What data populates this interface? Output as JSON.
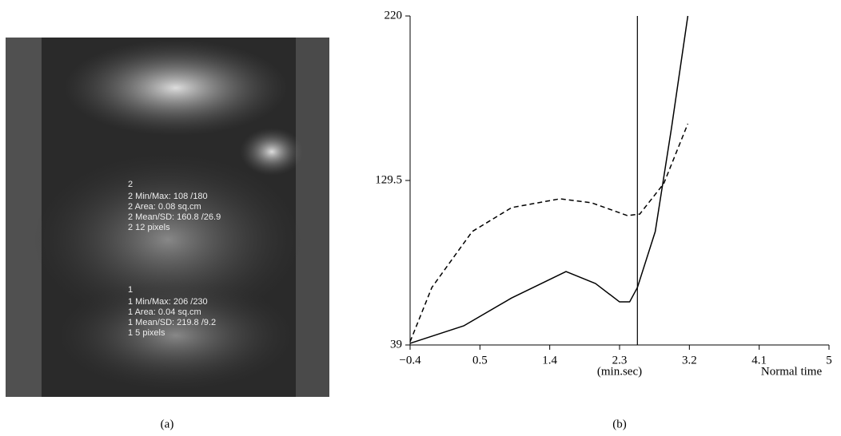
{
  "figure_labels": [
    "(a)",
    "(b)"
  ],
  "image_panel": {
    "overlays": [
      "2",
      "2 Min/Max: 108 /180",
      "2 Area: 0.08 sq.cm",
      "2 Mean/SD: 160.8 /26.9",
      "2  12 pixels",
      "1",
      "1 Min/Max: 206 /230",
      "1 Area: 0.04 sq.cm",
      "1 Mean/SD: 219.8 /9.2",
      "1  5 pixels"
    ]
  },
  "chart_data": {
    "type": "line",
    "xlabel": "(min.sec)",
    "xlabel2": "Normal time",
    "xlim": [
      -0.4,
      5
    ],
    "xticks": [
      {
        "value": -0.4,
        "label": "−0.4"
      },
      0.5,
      1.4,
      2.3,
      3.2,
      4.1,
      5
    ],
    "ylim": [
      39,
      220
    ],
    "yticks": [
      39,
      129.5,
      220
    ],
    "vline": 2.53,
    "series": [
      {
        "color": "#000000",
        "style": "solid",
        "x": [
          -0.4,
          0.29,
          0.91,
          1.61,
          1.99,
          2.3,
          2.43,
          2.53,
          2.76,
          2.97,
          3.18
        ],
        "values": [
          39.9,
          49.5,
          64.9,
          79.4,
          72.8,
          62.7,
          62.7,
          70.6,
          101.4,
          158.5,
          220
        ]
      },
      {
        "color": "#000000",
        "style": "dashed",
        "x": [
          -0.4,
          -0.12,
          0.4,
          0.91,
          1.53,
          1.94,
          2.4,
          2.56,
          2.87,
          3.18
        ],
        "values": [
          40.8,
          70.6,
          101.4,
          114.6,
          119.4,
          117.2,
          110.2,
          111,
          127.8,
          160.7
        ]
      }
    ]
  }
}
